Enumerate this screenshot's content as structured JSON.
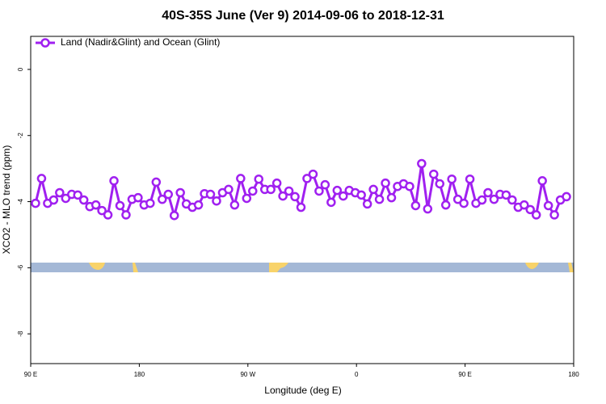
{
  "chart_data": {
    "type": "line",
    "title": "40S-35S June (Ver 9)   2014-09-06 to 2018-12-31",
    "x_label": "Longitude (deg E)",
    "y_label": "XCO2 - MLO trend (ppm)",
    "legend": "top-left",
    "xlim": [
      90,
      540
    ],
    "ylim": [
      -8.9,
      1.0
    ],
    "xticks": [
      {
        "value": 90,
        "label": "90 E"
      },
      180,
      {
        "value": 270,
        "label": "90 W"
      },
      {
        "value": 360,
        "label": "0"
      },
      {
        "value": 450,
        "label": "90 E"
      },
      {
        "value": 540,
        "label": "180"
      }
    ],
    "yticks": [
      0,
      -2,
      -4,
      -6,
      -8
    ],
    "x": [
      94,
      99,
      104,
      109,
      114,
      119,
      124,
      129,
      134,
      139,
      144,
      149,
      154,
      159,
      164,
      169,
      174,
      179,
      184,
      189,
      194,
      199,
      204,
      209,
      214,
      219,
      224,
      229,
      234,
      239,
      244,
      249,
      254,
      259,
      264,
      269,
      274,
      279,
      284,
      289,
      294,
      299,
      304,
      309,
      314,
      319,
      324,
      329,
      334,
      339,
      344,
      349,
      354,
      359,
      364,
      369,
      374,
      379,
      384,
      389,
      394,
      399,
      404,
      409,
      414,
      419,
      424,
      429,
      434,
      439,
      444,
      449,
      454,
      459,
      464,
      469,
      474,
      479,
      484,
      489,
      494,
      499,
      504,
      509,
      514,
      519,
      524,
      529,
      534
    ],
    "series": [
      {
        "name": "Land (Nadir&Glint) and Ocean (Glint)",
        "color": "#a020f0",
        "values": [
          -4.05,
          -3.3,
          -4.05,
          -3.95,
          -3.73,
          -3.9,
          -3.78,
          -3.8,
          -3.95,
          -4.15,
          -4.1,
          -4.27,
          -4.4,
          -3.37,
          -4.12,
          -4.4,
          -3.93,
          -3.88,
          -4.1,
          -4.05,
          -3.41,
          -3.93,
          -3.78,
          -4.42,
          -3.73,
          -4.07,
          -4.17,
          -4.1,
          -3.76,
          -3.78,
          -3.98,
          -3.73,
          -3.63,
          -4.1,
          -3.3,
          -3.9,
          -3.68,
          -3.32,
          -3.63,
          -3.63,
          -3.44,
          -3.83,
          -3.68,
          -3.85,
          -4.17,
          -3.3,
          -3.17,
          -3.68,
          -3.49,
          -4.02,
          -3.66,
          -3.83,
          -3.66,
          -3.73,
          -3.8,
          -4.07,
          -3.63,
          -3.93,
          -3.44,
          -3.88,
          -3.54,
          -3.46,
          -3.54,
          -4.12,
          -2.85,
          -4.22,
          -3.17,
          -3.46,
          -4.1,
          -3.32,
          -3.93,
          -4.05,
          -3.32,
          -4.05,
          -3.95,
          -3.73,
          -3.93,
          -3.78,
          -3.8,
          -3.95,
          -4.17,
          -4.1,
          -4.24,
          -4.4,
          -3.37,
          -4.12,
          -4.4,
          -3.95,
          -3.85
        ]
      }
    ]
  }
}
